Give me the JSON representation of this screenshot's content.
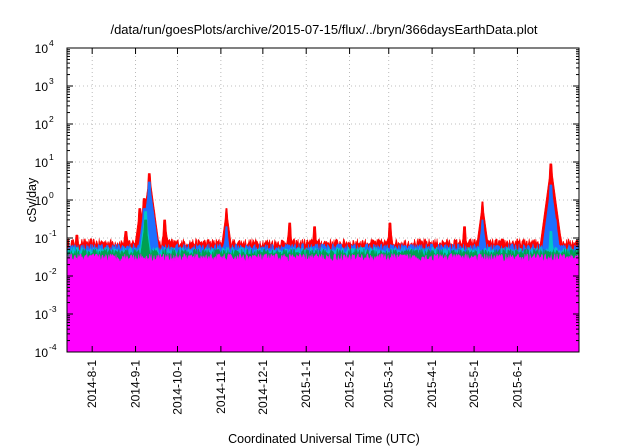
{
  "chart_data": {
    "type": "area",
    "title": "/data/run/goesPlots/archive/2015-07-15/flux/../bryn/366daysEarthData.plot",
    "xlabel": "Coordinated Universal Time (UTC)",
    "ylabel": "cSv/day",
    "x_range": [
      "2014-07-14",
      "2015-07-15"
    ],
    "ylim": [
      0.0001,
      10000
    ],
    "y_scale": "log",
    "grid": true,
    "legend": "none",
    "x_ticks": [
      {
        "date": "2014-08-01",
        "label": "2014-8-1"
      },
      {
        "date": "2014-09-01",
        "label": "2014-9-1"
      },
      {
        "date": "2014-10-01",
        "label": "2014-10-1"
      },
      {
        "date": "2014-11-01",
        "label": "2014-11-1"
      },
      {
        "date": "2014-12-01",
        "label": "2014-12-1"
      },
      {
        "date": "2015-01-01",
        "label": "2015-1-1"
      },
      {
        "date": "2015-02-01",
        "label": "2015-2-1"
      },
      {
        "date": "2015-03-01",
        "label": "2015-3-1"
      },
      {
        "date": "2015-04-01",
        "label": "2015-4-1"
      },
      {
        "date": "2015-05-01",
        "label": "2015-5-1"
      },
      {
        "date": "2015-06-01",
        "label": "2015-6-1"
      }
    ],
    "y_ticks": [
      {
        "value": 0.0001,
        "base": "10",
        "exp": "-4"
      },
      {
        "value": 0.001,
        "base": "10",
        "exp": "-3"
      },
      {
        "value": 0.01,
        "base": "10",
        "exp": "-2"
      },
      {
        "value": 0.1,
        "base": "10",
        "exp": "-1"
      },
      {
        "value": 1,
        "base": "10",
        "exp": "0"
      },
      {
        "value": 10,
        "base": "10",
        "exp": "1"
      },
      {
        "value": 100,
        "base": "10",
        "exp": "2"
      },
      {
        "value": 1000,
        "base": "10",
        "exp": "3"
      },
      {
        "value": 10000,
        "base": "10",
        "exp": "4"
      }
    ],
    "series": [
      {
        "color": "#ff0000",
        "baseline": 0.075,
        "peaks": [
          {
            "date": "2014-07-21",
            "value": 0.12
          },
          {
            "date": "2014-08-25",
            "value": 0.15
          },
          {
            "date": "2014-09-04",
            "value": 0.6
          },
          {
            "date": "2014-09-07",
            "value": 1.1
          },
          {
            "date": "2014-09-11",
            "value": 5.0
          },
          {
            "date": "2014-09-14",
            "value": 0.5
          },
          {
            "date": "2014-09-22",
            "value": 0.3
          },
          {
            "date": "2014-11-05",
            "value": 0.6
          },
          {
            "date": "2014-12-20",
            "value": 0.25
          },
          {
            "date": "2015-01-07",
            "value": 0.2
          },
          {
            "date": "2015-03-02",
            "value": 0.25
          },
          {
            "date": "2015-04-24",
            "value": 0.2
          },
          {
            "date": "2015-05-07",
            "value": 0.9
          },
          {
            "date": "2015-06-22",
            "value": 0.9
          },
          {
            "date": "2015-06-25",
            "value": 9.0
          },
          {
            "date": "2015-06-28",
            "value": 0.45
          }
        ]
      },
      {
        "color": "#1e6fff",
        "baseline": 0.055,
        "peaks": [
          {
            "date": "2014-09-07",
            "value": 0.6
          },
          {
            "date": "2014-09-11",
            "value": 3.0
          },
          {
            "date": "2014-11-05",
            "value": 0.2
          },
          {
            "date": "2015-05-07",
            "value": 0.3
          },
          {
            "date": "2015-06-25",
            "value": 2.5
          },
          {
            "date": "2015-06-28",
            "value": 0.3
          }
        ]
      },
      {
        "color": "#00c8c8",
        "baseline": 0.045,
        "peaks": [
          {
            "date": "2014-09-08",
            "value": 0.5
          },
          {
            "date": "2015-06-25",
            "value": 0.15
          }
        ]
      },
      {
        "color": "#00a050",
        "baseline": 0.04,
        "peaks": [
          {
            "date": "2014-09-08",
            "value": 0.3
          }
        ]
      },
      {
        "color": "#ff00ff",
        "baseline": 0.03,
        "floor": 0.0035,
        "dropouts_to_min": true
      }
    ]
  }
}
